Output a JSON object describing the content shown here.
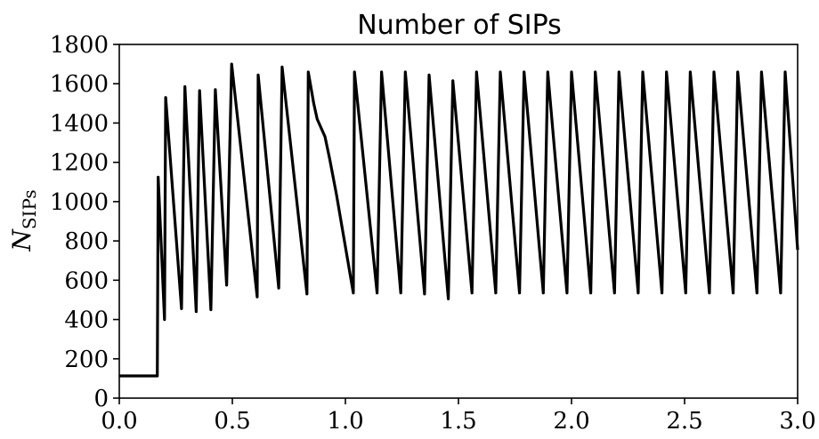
{
  "chart_data": {
    "type": "line",
    "title": "Number of SIPs",
    "xlabel": "",
    "ylabel_main": "N",
    "ylabel_sub": "SIPs",
    "xlim": [
      0.0,
      3.0
    ],
    "ylim": [
      0,
      1800
    ],
    "xticks": [
      0.0,
      0.5,
      1.0,
      1.5,
      2.0,
      2.5,
      3.0
    ],
    "xtick_labels": [
      "0.0",
      "0.5",
      "1.0",
      "1.5",
      "2.0",
      "2.5",
      "3.0"
    ],
    "yticks": [
      0,
      200,
      400,
      600,
      800,
      1000,
      1200,
      1400,
      1600,
      1800
    ],
    "ytick_labels": [
      "0",
      "200",
      "400",
      "600",
      "800",
      "1000",
      "1200",
      "1400",
      "1600",
      "1800"
    ],
    "grid": false,
    "legend": "none",
    "line_color": "#000000",
    "series": [
      {
        "x": [
          0.0,
          0.168,
          0.172,
          0.2,
          0.205,
          0.275,
          0.29,
          0.34,
          0.355,
          0.405,
          0.425,
          0.475,
          0.497,
          0.61,
          0.614,
          0.705,
          0.72,
          0.83,
          0.836,
          0.86,
          0.875,
          0.91,
          0.93,
          0.96,
          1.035,
          1.04,
          1.14,
          1.16,
          1.245,
          1.265,
          1.35,
          1.37,
          1.455,
          1.475,
          1.56,
          1.58,
          1.665,
          1.685,
          1.77,
          1.79,
          1.875,
          1.895,
          1.98,
          2.0,
          2.085,
          2.105,
          2.19,
          2.21,
          2.295,
          2.315,
          2.4,
          2.42,
          2.505,
          2.525,
          2.61,
          2.63,
          2.715,
          2.735,
          2.82,
          2.84,
          2.925,
          2.945,
          3.0
        ],
        "y": [
          113,
          113,
          1125,
          400,
          1530,
          455,
          1585,
          440,
          1565,
          450,
          1570,
          575,
          1700,
          515,
          1645,
          560,
          1685,
          530,
          1660,
          1500,
          1420,
          1330,
          1220,
          1040,
          535,
          1660,
          535,
          1660,
          535,
          1660,
          530,
          1645,
          505,
          1615,
          535,
          1660,
          535,
          1660,
          535,
          1660,
          535,
          1660,
          535,
          1660,
          535,
          1660,
          535,
          1660,
          535,
          1660,
          535,
          1660,
          535,
          1660,
          535,
          1660,
          535,
          1660,
          535,
          1660,
          535,
          1660,
          755
        ]
      }
    ]
  }
}
